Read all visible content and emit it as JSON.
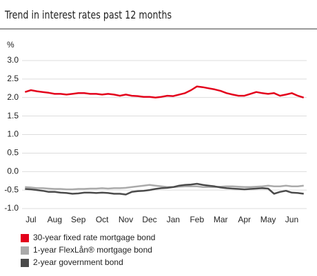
{
  "chart_data": {
    "type": "line",
    "title": "Trend in interest rates past 12 months",
    "ylabel": "%",
    "categories": [
      null,
      "Jul",
      null,
      null,
      null,
      "Aug",
      null,
      null,
      null,
      "Sep",
      null,
      null,
      null,
      "Oct",
      null,
      null,
      null,
      "Nov",
      null,
      null,
      null,
      "Dec",
      null,
      null,
      null,
      "Jan",
      null,
      null,
      null,
      "Feb",
      null,
      null,
      null,
      "Mar",
      null,
      null,
      null,
      "Apr",
      null,
      null,
      null,
      "May",
      null,
      null,
      null,
      "Jun",
      null,
      null
    ],
    "series": [
      {
        "name": "30-year fixed rate mortgage bond",
        "color": "#e3001b",
        "values": [
          2.15,
          2.2,
          2.17,
          2.15,
          2.13,
          2.1,
          2.1,
          2.08,
          2.1,
          2.12,
          2.12,
          2.1,
          2.1,
          2.08,
          2.1,
          2.08,
          2.05,
          2.08,
          2.05,
          2.04,
          2.02,
          2.02,
          2.0,
          2.02,
          2.05,
          2.04,
          2.08,
          2.12,
          2.2,
          2.3,
          2.28,
          2.25,
          2.22,
          2.18,
          2.12,
          2.08,
          2.05,
          2.05,
          2.1,
          2.15,
          2.12,
          2.1,
          2.12,
          2.05,
          2.08,
          2.12,
          2.05,
          2.0
        ]
      },
      {
        "name": "1-year FlexLån® mortgage bond",
        "color": "#aaaaaa",
        "values": [
          -0.42,
          -0.43,
          -0.45,
          -0.45,
          -0.46,
          -0.47,
          -0.47,
          -0.48,
          -0.48,
          -0.47,
          -0.47,
          -0.46,
          -0.46,
          -0.45,
          -0.46,
          -0.45,
          -0.45,
          -0.44,
          -0.42,
          -0.4,
          -0.38,
          -0.36,
          -0.38,
          -0.4,
          -0.42,
          -0.42,
          -0.41,
          -0.4,
          -0.4,
          -0.4,
          -0.42,
          -0.42,
          -0.42,
          -0.41,
          -0.4,
          -0.4,
          -0.41,
          -0.42,
          -0.42,
          -0.41,
          -0.4,
          -0.38,
          -0.4,
          -0.4,
          -0.38,
          -0.4,
          -0.4,
          -0.38
        ]
      },
      {
        "name": "2-year government bond",
        "color": "#4a4a4a",
        "values": [
          -0.47,
          -0.48,
          -0.5,
          -0.52,
          -0.55,
          -0.55,
          -0.57,
          -0.58,
          -0.6,
          -0.59,
          -0.57,
          -0.57,
          -0.58,
          -0.57,
          -0.58,
          -0.6,
          -0.6,
          -0.62,
          -0.55,
          -0.53,
          -0.52,
          -0.5,
          -0.47,
          -0.45,
          -0.44,
          -0.42,
          -0.38,
          -0.36,
          -0.35,
          -0.33,
          -0.36,
          -0.38,
          -0.4,
          -0.43,
          -0.45,
          -0.46,
          -0.47,
          -0.48,
          -0.47,
          -0.46,
          -0.45,
          -0.46,
          -0.6,
          -0.55,
          -0.52,
          -0.57,
          -0.58,
          -0.6
        ]
      }
    ],
    "ylim": [
      -1,
      3
    ],
    "yticks": [
      {
        "value": 3,
        "label": "3.0"
      },
      2.5,
      {
        "value": 2,
        "label": "2.0"
      },
      1.5,
      {
        "value": 1,
        "label": "1.0"
      },
      0.5,
      {
        "value": 0,
        "label": "0.0"
      },
      -0.5,
      {
        "value": -1,
        "label": "-1.0"
      }
    ],
    "grid": true
  }
}
